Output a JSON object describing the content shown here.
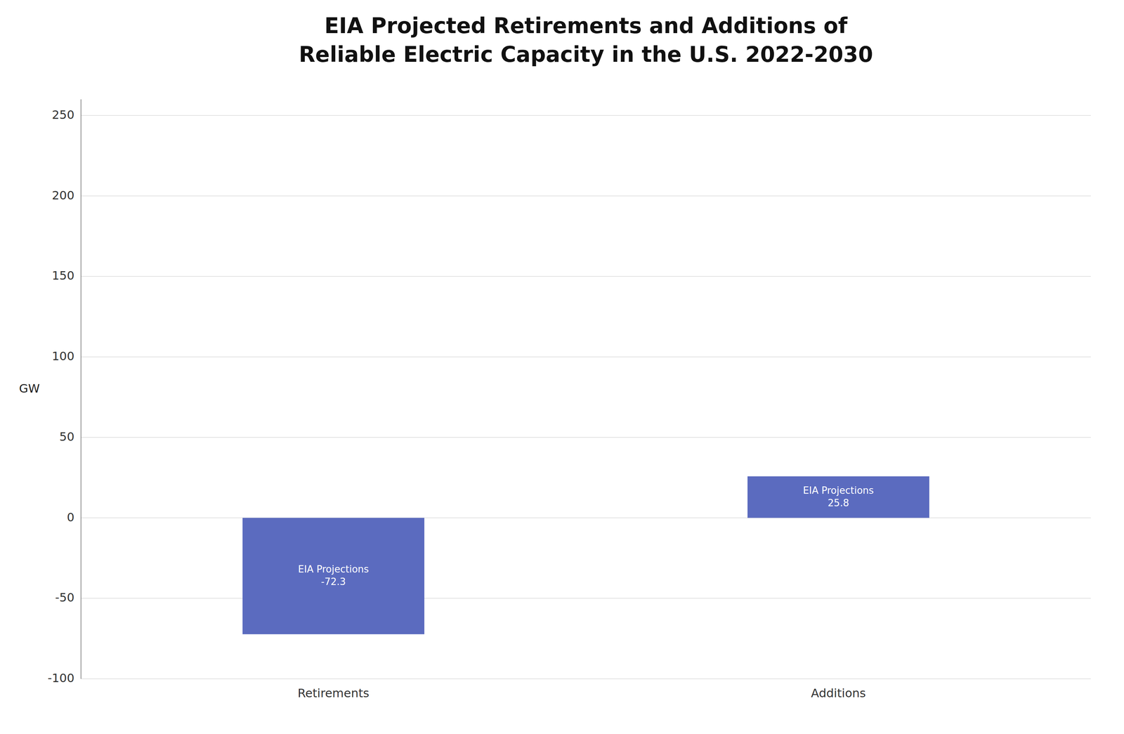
{
  "chart_data": {
    "type": "bar",
    "title": "EIA Projected Retirements and Additions of\nReliable Electric Capacity in the U.S. 2022-2030",
    "categories": [
      "Retirements",
      "Additions"
    ],
    "values": [
      -72.3,
      25.8
    ],
    "color": "#5b6bbf",
    "ylabel": "GW",
    "annotation": "EIA Projections",
    "data_labels": true,
    "ylim": [
      -100,
      260
    ],
    "yticks": [
      -100,
      -50,
      0,
      50,
      100,
      150,
      200,
      250
    ],
    "grid": true
  }
}
